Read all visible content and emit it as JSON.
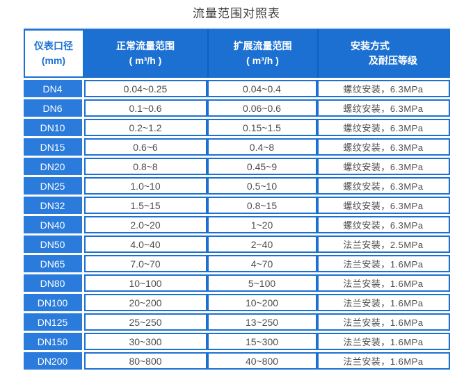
{
  "title": "流量范围对照表",
  "colors": {
    "header_blue": "#1c70d2",
    "row_label_blue": "#2a7bdc",
    "border_blue": "#1c70d2",
    "header_divider_blue": "#1160c0",
    "top_edge_light_blue": "#a9c7ee",
    "text_dark": "#4d4d4d",
    "white": "#ffffff"
  },
  "table": {
    "headers": [
      {
        "lines": [
          "仪表口径",
          "(mm)"
        ]
      },
      {
        "lines": [
          "正常流量范围",
          "( m³/h )"
        ]
      },
      {
        "lines": [
          "扩展流量范围",
          "( m³/h )"
        ]
      },
      {
        "lines": [
          "安装方式",
          "及耐压等级"
        ]
      }
    ],
    "rows": [
      [
        "DN4",
        "0.04~0.25",
        "0.04~0.4",
        "螺纹安装，6.3MPa"
      ],
      [
        "DN6",
        "0.1~0.6",
        "0.06~0.6",
        "螺纹安装，6.3MPa"
      ],
      [
        "DN10",
        "0.2~1.2",
        "0.15~1.5",
        "螺纹安装，6.3MPa"
      ],
      [
        "DN15",
        "0.6~6",
        "0.4~8",
        "螺纹安装，6.3MPa"
      ],
      [
        "DN20",
        "0.8~8",
        "0.45~9",
        "螺纹安装，6.3MPa"
      ],
      [
        "DN25",
        "1.0~10",
        "0.5~10",
        "螺纹安装，6.3MPa"
      ],
      [
        "DN32",
        "1.5~15",
        "0.8~15",
        "螺纹安装，6.3MPa"
      ],
      [
        "DN40",
        "2.0~20",
        "1~20",
        "螺纹安装，6.3MPa"
      ],
      [
        "DN50",
        "4.0~40",
        "2~40",
        "法兰安装，2.5MPa"
      ],
      [
        "DN65",
        "7.0~70",
        "4~70",
        "法兰安装，1.6MPa"
      ],
      [
        "DN80",
        "10~100",
        "5~100",
        "法兰安装，1.6MPa"
      ],
      [
        "DN100",
        "20~200",
        "10~200",
        "法兰安装，1.6MPa"
      ],
      [
        "DN125",
        "25~250",
        "13~250",
        "法兰安装，1.6MPa"
      ],
      [
        "DN150",
        "30~300",
        "15~300",
        "法兰安装，1.6MPa"
      ],
      [
        "DN200",
        "80~800",
        "40~800",
        "法兰安装，1.6MPa"
      ]
    ]
  }
}
